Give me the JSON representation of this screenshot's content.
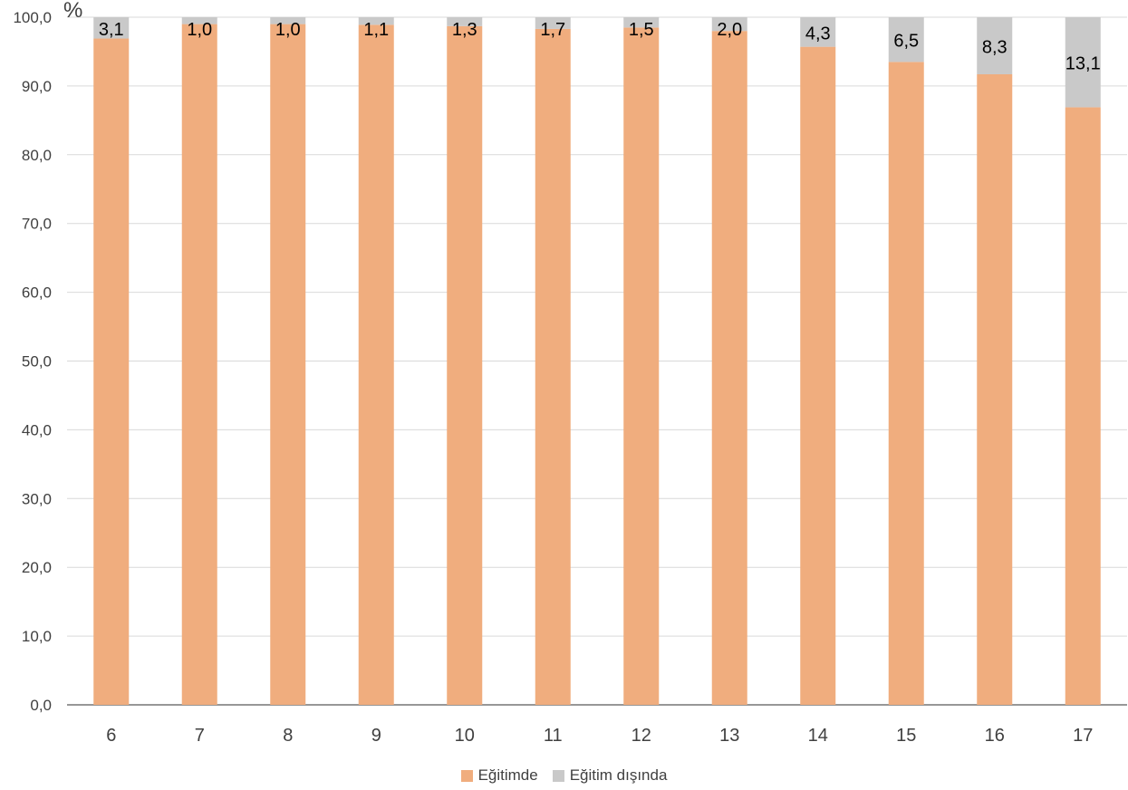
{
  "chart_data": {
    "type": "bar",
    "stacked": true,
    "unit_label": "%",
    "categories": [
      "6",
      "7",
      "8",
      "9",
      "10",
      "11",
      "12",
      "13",
      "14",
      "15",
      "16",
      "17"
    ],
    "series": [
      {
        "name": "Eğitimde",
        "color": "#F0AD7E",
        "values": [
          96.9,
          99.0,
          99.0,
          98.9,
          98.7,
          98.3,
          98.5,
          98.0,
          95.7,
          93.5,
          91.7,
          86.9
        ]
      },
      {
        "name": "Eğitim dışında",
        "color": "#C9C9C9",
        "values": [
          3.1,
          1.0,
          1.0,
          1.1,
          1.3,
          1.7,
          1.5,
          2.0,
          4.3,
          6.5,
          8.3,
          13.1
        ],
        "labels": [
          "3,1",
          "1,0",
          "1,0",
          "1,1",
          "1,3",
          "1,7",
          "1,5",
          "2,0",
          "4,3",
          "6,5",
          "8,3",
          "13,1"
        ]
      }
    ],
    "ylim": [
      0,
      100
    ],
    "yticks": [
      0,
      10,
      20,
      30,
      40,
      50,
      60,
      70,
      80,
      90,
      100
    ],
    "ytick_labels": [
      "0,0",
      "10,0",
      "20,0",
      "30,0",
      "40,0",
      "50,0",
      "60,0",
      "70,0",
      "80,0",
      "90,0",
      "100,0"
    ],
    "grid": true,
    "legend_position": "bottom"
  }
}
